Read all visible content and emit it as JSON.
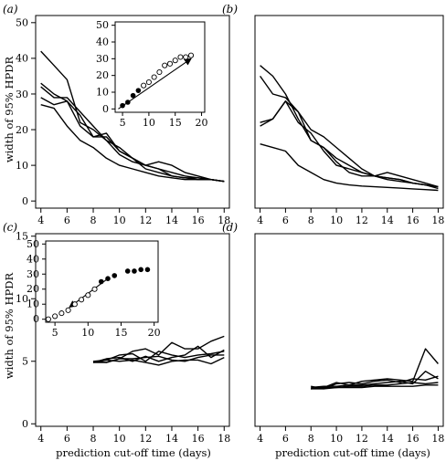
{
  "xlabel": "prediction cut-off time (days)",
  "ylabel": "width of 95% HPDR",
  "chart_data": [
    {
      "type": "line",
      "panel_label": "(a)",
      "xlim": [
        3.6,
        18.4
      ],
      "ylim": [
        -2,
        52
      ],
      "xticks": [
        4,
        6,
        8,
        10,
        12,
        14,
        16,
        18
      ],
      "yticks": [
        0,
        10,
        20,
        30,
        40,
        50
      ],
      "show_xticks": true,
      "show_yticks": true,
      "series": [
        {
          "x": [
            4,
            5,
            6,
            7,
            8,
            9,
            10,
            11,
            12,
            13,
            14,
            15,
            16,
            17,
            18
          ],
          "y": [
            42,
            38,
            34,
            22,
            20,
            17,
            15,
            12,
            10,
            9,
            8,
            7,
            6.5,
            6,
            5.5
          ]
        },
        {
          "x": [
            4,
            5,
            6,
            7,
            8,
            9,
            10,
            11,
            12,
            13,
            14,
            15,
            16,
            17,
            18
          ],
          "y": [
            33,
            30,
            28,
            24,
            18,
            18,
            14,
            12,
            10,
            9,
            7,
            6.5,
            6.5,
            6,
            5.5
          ]
        },
        {
          "x": [
            4,
            5,
            6,
            7,
            8,
            9,
            10,
            11,
            12,
            13,
            14,
            15,
            16,
            17,
            18
          ],
          "y": [
            32,
            29,
            29,
            25,
            21,
            17,
            13,
            11,
            10,
            11,
            10,
            8,
            7,
            6,
            5.5
          ]
        },
        {
          "x": [
            4,
            5,
            6,
            7,
            8,
            9,
            10,
            11,
            12,
            13,
            14,
            15,
            16,
            17,
            18
          ],
          "y": [
            29,
            27,
            28,
            21,
            18,
            19,
            14,
            12,
            9,
            8,
            7,
            6.5,
            6,
            6,
            5.5
          ]
        },
        {
          "x": [
            4,
            5,
            6,
            7,
            8,
            9,
            10,
            11,
            12,
            13,
            14,
            15,
            16,
            17,
            18
          ],
          "y": [
            27,
            26,
            21,
            17,
            15,
            12,
            10,
            9,
            8,
            7,
            6.5,
            6,
            6,
            6,
            5.5
          ]
        }
      ],
      "inset": {
        "type": "scatter",
        "xlim": [
          3.6,
          20.6
        ],
        "ylim": [
          -2,
          52
        ],
        "xticks": [
          5,
          10,
          15,
          20
        ],
        "yticks": [
          0,
          10,
          20,
          30,
          40,
          50
        ],
        "filled_points": {
          "x": [
            5,
            6,
            7,
            8
          ],
          "y": [
            2,
            4,
            8,
            11
          ]
        },
        "open_points": {
          "x": [
            9,
            10,
            11,
            12,
            13,
            14,
            15,
            16,
            17,
            18
          ],
          "y": [
            14,
            16,
            19,
            22,
            26,
            27,
            29,
            31,
            31,
            32
          ]
        },
        "arrow": {
          "from": [
            4.2,
            0
          ],
          "to": [
            18,
            30
          ]
        }
      }
    },
    {
      "type": "line",
      "panel_label": "(b)",
      "xlim": [
        3.6,
        18.4
      ],
      "ylim": [
        -2,
        52
      ],
      "xticks": [
        4,
        6,
        8,
        10,
        12,
        14,
        16,
        18
      ],
      "yticks": [
        0,
        10,
        20,
        30,
        40,
        50
      ],
      "show_xticks": true,
      "show_yticks": false,
      "series": [
        {
          "x": [
            4,
            5,
            6,
            7,
            8,
            9,
            10,
            11,
            12,
            13,
            14,
            15,
            16,
            17,
            18
          ],
          "y": [
            38,
            35,
            30,
            23,
            17,
            15,
            12,
            10,
            8,
            7,
            6.5,
            6,
            5,
            4.5,
            4
          ]
        },
        {
          "x": [
            4,
            5,
            6,
            7,
            8,
            9,
            10,
            11,
            12,
            13,
            14,
            15,
            16,
            17,
            18
          ],
          "y": [
            35,
            30,
            29,
            25,
            20,
            18,
            15,
            12,
            9,
            7,
            6,
            5.5,
            5,
            4.5,
            4
          ]
        },
        {
          "x": [
            4,
            5,
            6,
            7,
            8,
            9,
            10,
            11,
            12,
            13,
            14,
            15,
            16,
            17,
            18
          ],
          "y": [
            22,
            23,
            28,
            25,
            17,
            15,
            11,
            8,
            7,
            7,
            8,
            7,
            6,
            5,
            4
          ]
        },
        {
          "x": [
            4,
            5,
            6,
            7,
            8,
            9,
            10,
            11,
            12,
            13,
            14,
            15,
            16,
            17,
            18
          ],
          "y": [
            21,
            23,
            28,
            22,
            19,
            14,
            10,
            9,
            8,
            7,
            6.5,
            6,
            5,
            4.5,
            3.5
          ]
        },
        {
          "x": [
            4,
            5,
            6,
            7,
            8,
            9,
            10,
            11,
            12,
            13,
            14,
            15,
            16,
            17,
            18
          ],
          "y": [
            16,
            15,
            14,
            10,
            8,
            6,
            5,
            4.5,
            4.2,
            4,
            3.8,
            3.6,
            3.4,
            3.2,
            3
          ]
        }
      ]
    },
    {
      "type": "line",
      "panel_label": "(c)",
      "xlim": [
        3.6,
        18.4
      ],
      "ylim": [
        -0.2,
        15.2
      ],
      "xticks": [
        4,
        6,
        8,
        10,
        12,
        14,
        16,
        18
      ],
      "yticks": [
        0,
        5,
        10,
        15
      ],
      "show_xticks": true,
      "show_yticks": true,
      "series": [
        {
          "x": [
            8,
            9,
            10,
            11,
            12,
            13,
            14,
            15,
            16,
            17,
            18
          ],
          "y": [
            5.0,
            4.9,
            5.2,
            5.8,
            6.0,
            5.5,
            6.5,
            6.0,
            6.0,
            6.6,
            7.0
          ]
        },
        {
          "x": [
            8,
            9,
            10,
            11,
            12,
            13,
            14,
            15,
            16,
            17,
            18
          ],
          "y": [
            4.9,
            5.2,
            5.3,
            5.0,
            5.4,
            5.0,
            5.3,
            5.5,
            6.2,
            5.3,
            5.9
          ]
        },
        {
          "x": [
            8,
            9,
            10,
            11,
            12,
            13,
            14,
            15,
            16,
            17,
            18
          ],
          "y": [
            5.0,
            5.1,
            5.5,
            5.6,
            5.0,
            5.8,
            5.5,
            5.3,
            5.5,
            5.6,
            5.8
          ]
        },
        {
          "x": [
            8,
            9,
            10,
            11,
            12,
            13,
            14,
            15,
            16,
            17,
            18
          ],
          "y": [
            4.9,
            4.9,
            5.2,
            5.2,
            5.3,
            5.4,
            5.1,
            5.0,
            5.3,
            5.5,
            5.5
          ]
        },
        {
          "x": [
            8,
            9,
            10,
            11,
            12,
            13,
            14,
            15,
            16,
            17,
            18
          ],
          "y": [
            4.9,
            5.1,
            5.0,
            5.1,
            4.9,
            4.7,
            5.0,
            5.1,
            5.1,
            4.8,
            5.3
          ]
        }
      ],
      "inset": {
        "type": "scatter",
        "xlim": [
          3.6,
          20.6
        ],
        "ylim": [
          -2,
          52
        ],
        "xticks": [
          5,
          10,
          15,
          20
        ],
        "yticks": [
          0,
          10,
          20,
          30,
          40,
          50
        ],
        "open_points": {
          "x": [
            4,
            5,
            6,
            7,
            8,
            9,
            10,
            11
          ],
          "y": [
            0,
            2,
            4,
            6,
            10,
            13,
            16,
            20
          ]
        },
        "filled_points": {
          "x": [
            12,
            13,
            14,
            16,
            17,
            18,
            19
          ],
          "y": [
            25,
            27,
            29,
            32,
            32,
            33,
            33
          ]
        },
        "arrow": {
          "from": [
            13,
            27
          ],
          "to": [
            7.2,
            8
          ]
        }
      }
    },
    {
      "type": "line",
      "panel_label": "(d)",
      "xlim": [
        3.6,
        18.4
      ],
      "ylim": [
        -0.2,
        15.2
      ],
      "xticks": [
        4,
        6,
        8,
        10,
        12,
        14,
        16,
        18
      ],
      "yticks": [
        0,
        5,
        10,
        15
      ],
      "show_xticks": true,
      "show_yticks": false,
      "series": [
        {
          "x": [
            8,
            9,
            10,
            11,
            12,
            13,
            14,
            15,
            16,
            17,
            18
          ],
          "y": [
            2.8,
            2.9,
            3.3,
            3.1,
            3.4,
            3.5,
            3.6,
            3.5,
            3.4,
            6.0,
            4.8
          ]
        },
        {
          "x": [
            8,
            9,
            10,
            11,
            12,
            13,
            14,
            15,
            16,
            17,
            18
          ],
          "y": [
            3.0,
            2.8,
            3.2,
            3.3,
            3.2,
            3.4,
            3.5,
            3.3,
            3.6,
            3.5,
            3.8
          ]
        },
        {
          "x": [
            8,
            9,
            10,
            11,
            12,
            13,
            14,
            15,
            16,
            17,
            18
          ],
          "y": [
            2.9,
            3.0,
            3.0,
            3.1,
            3.1,
            3.2,
            3.3,
            3.4,
            3.2,
            4.2,
            3.6
          ]
        },
        {
          "x": [
            8,
            9,
            10,
            11,
            12,
            13,
            14,
            15,
            16,
            17,
            18
          ],
          "y": [
            2.8,
            2.9,
            2.9,
            3.0,
            3.0,
            3.1,
            3.1,
            3.2,
            3.3,
            3.2,
            3.3
          ]
        },
        {
          "x": [
            8,
            9,
            10,
            11,
            12,
            13,
            14,
            15,
            16,
            17,
            18
          ],
          "y": [
            2.8,
            2.8,
            2.9,
            2.9,
            2.9,
            3.0,
            3.0,
            3.0,
            3.0,
            3.1,
            3.1
          ]
        }
      ]
    }
  ]
}
